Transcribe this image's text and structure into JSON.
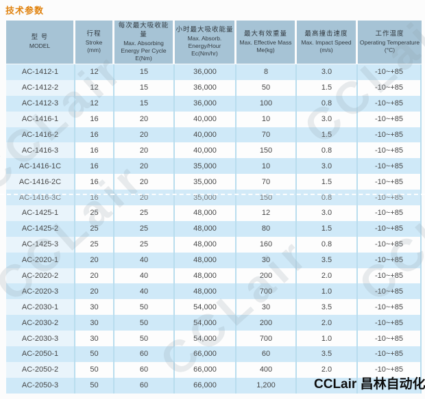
{
  "page": {
    "title": "技术参数",
    "logo": "CCLair 昌林自动化",
    "watermark_text": "CCLair"
  },
  "colors": {
    "title_orange": "#e0820e",
    "header_bg": "#a6c3d5",
    "row_blue": "#cfe9f8",
    "row_white": "#fdfdfd",
    "model_cell_tint": "#e9f4fb",
    "grid_line": "#b9ddee",
    "logo_text": "#0d0d0d"
  },
  "table": {
    "columns": [
      {
        "cn": "型 号",
        "en": "MODEL",
        "unit": ""
      },
      {
        "cn": "行程",
        "en": "Stroke",
        "unit": "(mm)"
      },
      {
        "cn": "每次最大吸收能量",
        "en": "Max. Absorbing Energy Per Cycle",
        "unit": "E(Nm)"
      },
      {
        "cn": "小时最大吸收能量",
        "en": "Max. Absorb. Energy/Hour",
        "unit": "Ec(Nm/hr)"
      },
      {
        "cn": "最大有效重量",
        "en": "Max. Effective Mass",
        "unit": "Me(kg)"
      },
      {
        "cn": "最高撞击速度",
        "en": "Max. Impact Speed",
        "unit": "(m/s)"
      },
      {
        "cn": "工作温度",
        "en": "Operating Temperature",
        "unit": "(°C)"
      }
    ],
    "rows": [
      {
        "model": "AC-1412-1",
        "stroke": "12",
        "e_cycle": "15",
        "e_hour": "36,000",
        "mass": "8",
        "speed": "3.0",
        "temp": "-10~+85"
      },
      {
        "model": "AC-1412-2",
        "stroke": "12",
        "e_cycle": "15",
        "e_hour": "36,000",
        "mass": "50",
        "speed": "1.5",
        "temp": "-10~+85"
      },
      {
        "model": "AC-1412-3",
        "stroke": "12",
        "e_cycle": "15",
        "e_hour": "36,000",
        "mass": "100",
        "speed": "0.8",
        "temp": "-10~+85"
      },
      {
        "model": "AC-1416-1",
        "stroke": "16",
        "e_cycle": "20",
        "e_hour": "40,000",
        "mass": "10",
        "speed": "3.0",
        "temp": "-10~+85"
      },
      {
        "model": "AC-1416-2",
        "stroke": "16",
        "e_cycle": "20",
        "e_hour": "40,000",
        "mass": "70",
        "speed": "1.5",
        "temp": "-10~+85"
      },
      {
        "model": "AC-1416-3",
        "stroke": "16",
        "e_cycle": "20",
        "e_hour": "40,000",
        "mass": "150",
        "speed": "0.8",
        "temp": "-10~+85"
      },
      {
        "model": "AC-1416-1C",
        "stroke": "16",
        "e_cycle": "20",
        "e_hour": "35,000",
        "mass": "10",
        "speed": "3.0",
        "temp": "-10~+85"
      },
      {
        "model": "AC-1416-2C",
        "stroke": "16",
        "e_cycle": "20",
        "e_hour": "35,000",
        "mass": "70",
        "speed": "1.5",
        "temp": "-10~+85"
      },
      {
        "model": "AC-1416-3C",
        "stroke": "16",
        "e_cycle": "20",
        "e_hour": "35,000",
        "mass": "150",
        "speed": "0.8",
        "temp": "-10~+85"
      },
      {
        "model": "AC-1425-1",
        "stroke": "25",
        "e_cycle": "25",
        "e_hour": "48,000",
        "mass": "12",
        "speed": "3.0",
        "temp": "-10~+85"
      },
      {
        "model": "AC-1425-2",
        "stroke": "25",
        "e_cycle": "25",
        "e_hour": "48,000",
        "mass": "80",
        "speed": "1.5",
        "temp": "-10~+85"
      },
      {
        "model": "AC-1425-3",
        "stroke": "25",
        "e_cycle": "25",
        "e_hour": "48,000",
        "mass": "160",
        "speed": "0.8",
        "temp": "-10~+85"
      },
      {
        "model": "AC-2020-1",
        "stroke": "20",
        "e_cycle": "40",
        "e_hour": "48,000",
        "mass": "30",
        "speed": "3.5",
        "temp": "-10~+85"
      },
      {
        "model": "AC-2020-2",
        "stroke": "20",
        "e_cycle": "40",
        "e_hour": "48,000",
        "mass": "200",
        "speed": "2.0",
        "temp": "-10~+85"
      },
      {
        "model": "AC-2020-3",
        "stroke": "20",
        "e_cycle": "40",
        "e_hour": "48,000",
        "mass": "700",
        "speed": "1.0",
        "temp": "-10~+85"
      },
      {
        "model": "AC-2030-1",
        "stroke": "30",
        "e_cycle": "50",
        "e_hour": "54,000",
        "mass": "30",
        "speed": "3.5",
        "temp": "-10~+85"
      },
      {
        "model": "AC-2030-2",
        "stroke": "30",
        "e_cycle": "50",
        "e_hour": "54,000",
        "mass": "200",
        "speed": "2.0",
        "temp": "-10~+85"
      },
      {
        "model": "AC-2030-3",
        "stroke": "30",
        "e_cycle": "50",
        "e_hour": "54,000",
        "mass": "700",
        "speed": "1.0",
        "temp": "-10~+85"
      },
      {
        "model": "AC-2050-1",
        "stroke": "50",
        "e_cycle": "60",
        "e_hour": "66,000",
        "mass": "60",
        "speed": "3.5",
        "temp": "-10~+85"
      },
      {
        "model": "AC-2050-2",
        "stroke": "50",
        "e_cycle": "60",
        "e_hour": "66,000",
        "mass": "400",
        "speed": "2.0",
        "temp": "-10~+85"
      },
      {
        "model": "AC-2050-3",
        "stroke": "50",
        "e_cycle": "60",
        "e_hour": "66,000",
        "mass": "1,200",
        "speed": "",
        "temp": ""
      }
    ]
  }
}
